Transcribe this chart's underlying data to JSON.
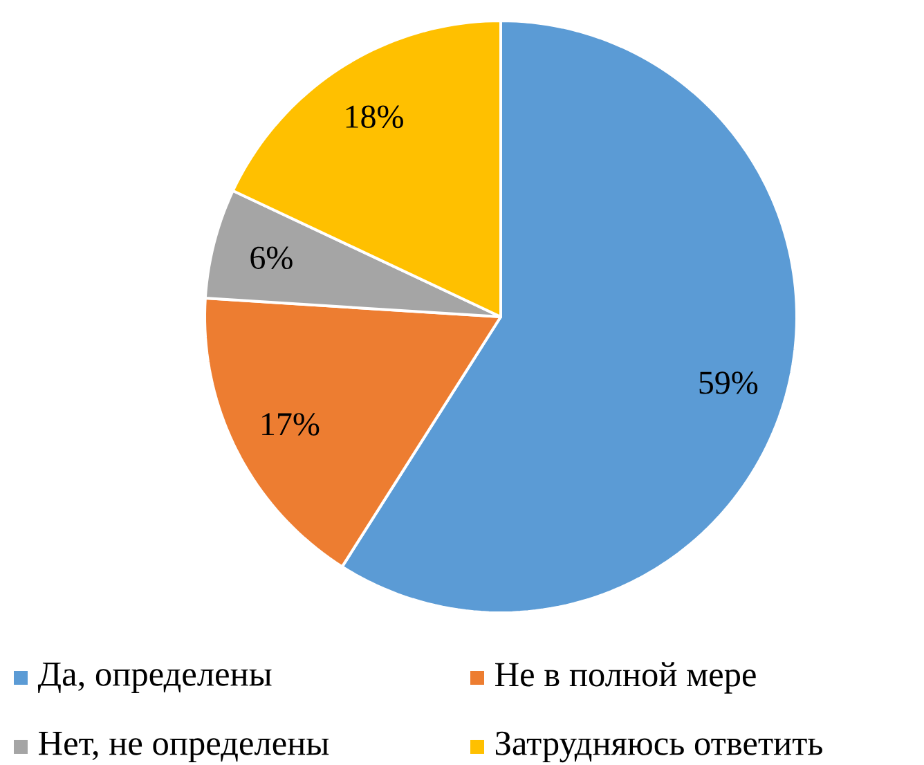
{
  "chart_data": {
    "type": "pie",
    "categories": [
      "Да, определены",
      "Не в полной мере",
      "Нет, не определены",
      "Затрудняюсь ответить"
    ],
    "values": [
      59,
      17,
      6,
      18
    ],
    "value_labels": [
      "59%",
      "17%",
      "6%",
      "18%"
    ],
    "colors": [
      "#5b9bd5",
      "#ed7d31",
      "#a5a5a5",
      "#ffc000"
    ],
    "legend": "bottom"
  }
}
